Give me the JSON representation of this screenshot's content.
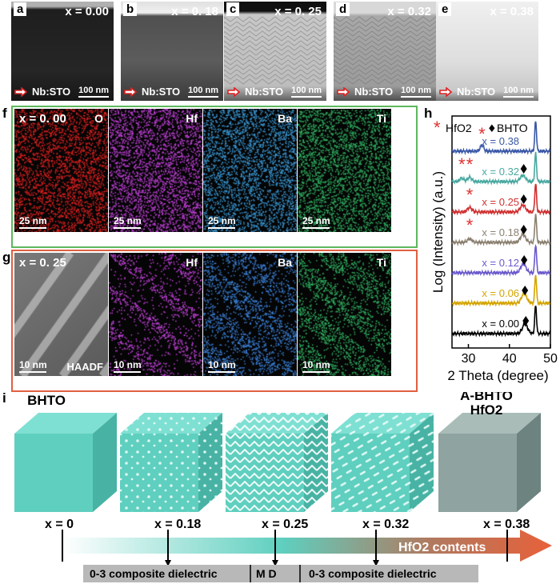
{
  "panel_letters": {
    "a": "a",
    "b": "b",
    "c": "c",
    "d": "d",
    "e": "e",
    "f": "f",
    "g": "g",
    "h": "h",
    "i": "i"
  },
  "tem_panels": [
    {
      "x_label": "x = 0.00",
      "substrate": "Nb:STO",
      "scale": "100 nm"
    },
    {
      "x_label": "x = 0. 18",
      "substrate": "Nb:STO",
      "scale": "100 nm"
    },
    {
      "x_label": "x = 0. 25",
      "substrate": "Nb:STO",
      "scale": "100 nm"
    },
    {
      "x_label": "x = 0.32",
      "substrate": "Nb:STO",
      "scale": "100 nm"
    },
    {
      "x_label": "x = 0.38",
      "substrate": "Nb:STO",
      "scale": "100 nm"
    }
  ],
  "eds_row_f": {
    "frame_color": "#5cb85c",
    "composition": "x = 0. 00",
    "maps": [
      {
        "element": "O",
        "scale": "25 nm",
        "color": "#e02020"
      },
      {
        "element": "Hf",
        "scale": "25 nm",
        "color": "#c040d8"
      },
      {
        "element": "Ba",
        "scale": "25 nm",
        "color": "#3a9ad8"
      },
      {
        "element": "Ti",
        "scale": "25 nm",
        "color": "#30b060"
      }
    ]
  },
  "eds_row_g": {
    "frame_color": "#e06040",
    "composition": "x = 0. 25",
    "maps": [
      {
        "element": "HAADF",
        "scale": "10 nm",
        "color": "#a0a0a0"
      },
      {
        "element": "Hf",
        "scale": "10 nm",
        "color": "#c040d8"
      },
      {
        "element": "Ba",
        "scale": "10 nm",
        "color": "#3a80d8"
      },
      {
        "element": "Ti",
        "scale": "10 nm",
        "color": "#30b060"
      }
    ]
  },
  "chart_data": {
    "type": "line",
    "title": "",
    "xlabel": "2 Theta (degree)",
    "ylabel": "Log (Intensity) (a.u.)",
    "xlim": [
      26,
      50
    ],
    "xticks": [
      30,
      40,
      50
    ],
    "legend": {
      "hfo2": "HfO2",
      "bhto": "BHTO",
      "hfo2_symbol": "*",
      "bhto_symbol": "♦"
    },
    "series": [
      {
        "name": "x = 0.00",
        "color": "#000000",
        "offset": 0,
        "peaks": [
          {
            "x": 43.8,
            "h": 0.55,
            "w": 0.9
          },
          {
            "x": 46.4,
            "h": 1.6,
            "w": 0.3
          }
        ],
        "markers": [
          {
            "type": "bhto",
            "x": 43.8
          }
        ]
      },
      {
        "name": "x = 0.06",
        "color": "#d4a400",
        "offset": 1,
        "peaks": [
          {
            "x": 43.6,
            "h": 0.55,
            "w": 0.9
          },
          {
            "x": 46.4,
            "h": 1.6,
            "w": 0.3
          }
        ],
        "markers": [
          {
            "type": "bhto",
            "x": 43.6
          }
        ]
      },
      {
        "name": "x = 0.12",
        "color": "#6a5acd",
        "offset": 2,
        "peaks": [
          {
            "x": 43.4,
            "h": 0.5,
            "w": 0.9
          },
          {
            "x": 46.4,
            "h": 1.6,
            "w": 0.3
          }
        ],
        "markers": [
          {
            "type": "bhto",
            "x": 43.4
          }
        ]
      },
      {
        "name": "x = 0.18",
        "color": "#8b8070",
        "offset": 3,
        "peaks": [
          {
            "x": 30.3,
            "h": 0.2,
            "w": 0.8
          },
          {
            "x": 43.3,
            "h": 0.45,
            "w": 0.9
          },
          {
            "x": 46.4,
            "h": 1.6,
            "w": 0.3
          }
        ],
        "markers": [
          {
            "type": "hfo2",
            "x": 30.3
          },
          {
            "type": "bhto",
            "x": 43.3
          }
        ]
      },
      {
        "name": "x = 0.25",
        "color": "#d03030",
        "offset": 4,
        "peaks": [
          {
            "x": 30.3,
            "h": 0.25,
            "w": 0.8
          },
          {
            "x": 43.3,
            "h": 0.4,
            "w": 0.9
          },
          {
            "x": 46.4,
            "h": 1.6,
            "w": 0.3
          }
        ],
        "markers": [
          {
            "type": "hfo2",
            "x": 30.3
          },
          {
            "type": "bhto",
            "x": 43.3
          }
        ]
      },
      {
        "name": "x = 0.32",
        "color": "#48a8a0",
        "offset": 5,
        "peaks": [
          {
            "x": 28.4,
            "h": 0.2,
            "w": 0.7
          },
          {
            "x": 30.3,
            "h": 0.25,
            "w": 0.7
          },
          {
            "x": 43.3,
            "h": 0.35,
            "w": 0.9
          },
          {
            "x": 46.4,
            "h": 1.6,
            "w": 0.3
          }
        ],
        "markers": [
          {
            "type": "hfo2",
            "x": 28.4
          },
          {
            "type": "hfo2",
            "x": 30.3
          },
          {
            "type": "bhto",
            "x": 43.3
          }
        ]
      },
      {
        "name": "x = 0.38",
        "color": "#3a58a8",
        "offset": 6,
        "peaks": [
          {
            "x": 33.3,
            "h": 0.35,
            "w": 0.6
          },
          {
            "x": 46.4,
            "h": 1.7,
            "w": 0.3
          }
        ],
        "markers": [
          {
            "type": "hfo2",
            "x": 33.3
          }
        ]
      }
    ]
  },
  "cubes": [
    {
      "label": "BHTO",
      "pattern": "plain"
    },
    {
      "label": "",
      "pattern": "dots"
    },
    {
      "label": "",
      "pattern": "zigzag"
    },
    {
      "label": "",
      "pattern": "dashes"
    },
    {
      "label": "A-BHTO\nHfO2",
      "pattern": "gray"
    }
  ],
  "axis": {
    "ticks": [
      {
        "label": "x = 0",
        "arrow": false
      },
      {
        "label": "x = 0.18",
        "arrow": true
      },
      {
        "label": "x = 0.25",
        "arrow": true
      },
      {
        "label": "x = 0.32",
        "arrow": true
      },
      {
        "label": "x = 0.38",
        "arrow": false
      }
    ],
    "arrow_label": "HfO2 contents",
    "regions": [
      "0-3 composite dielectric",
      "M D",
      "0-3 composite dielectric"
    ]
  },
  "colors": {
    "teal": "#5fcfbf",
    "orange": "#e8603a"
  }
}
